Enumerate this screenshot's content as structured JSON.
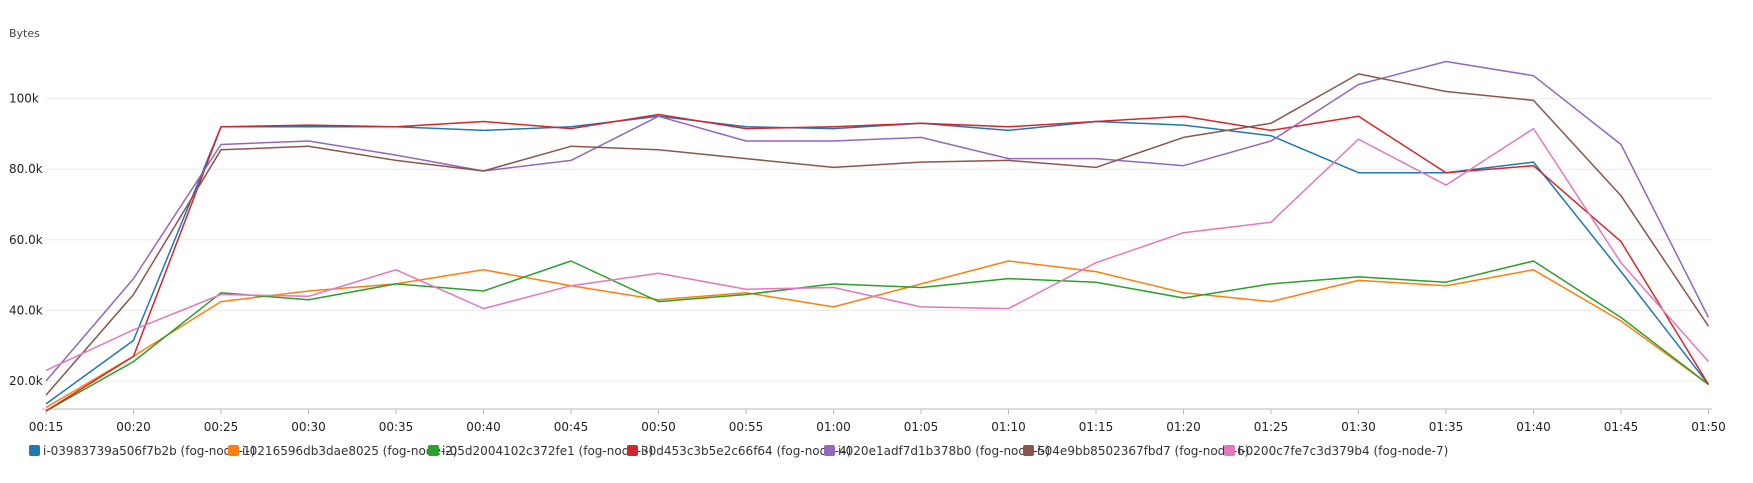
{
  "chart_data": {
    "type": "line",
    "ylabel": "Bytes",
    "xlabel": "",
    "ylim": [
      10000,
      115000
    ],
    "grid": true,
    "legend_position": "bottom",
    "x": [
      "00:15",
      "00:20",
      "00:25",
      "00:30",
      "00:35",
      "00:40",
      "00:45",
      "00:50",
      "00:55",
      "01:00",
      "01:05",
      "01:10",
      "01:15",
      "01:20",
      "01:25",
      "01:30",
      "01:35",
      "01:40",
      "01:45",
      "01:50"
    ],
    "y_ticks": [
      {
        "value": 20000,
        "label": "20.0k"
      },
      {
        "value": 40000,
        "label": "40.0k"
      },
      {
        "value": 60000,
        "label": "60.0k"
      },
      {
        "value": 80000,
        "label": "80.0k"
      },
      {
        "value": 100000,
        "label": "100k"
      }
    ],
    "series": [
      {
        "name": "i-03983739a506f7b2b (fog-node-1)",
        "color": "#1f77b4",
        "values": [
          13500,
          31500,
          92000,
          92000,
          92000,
          91000,
          92000,
          95000,
          92000,
          91500,
          93000,
          91000,
          93500,
          92500,
          89500,
          79000,
          79000,
          82000,
          51000,
          19000
        ]
      },
      {
        "name": "i-0216596db3dae8025 (fog-node-2)",
        "color": "#ff7f0e",
        "values": [
          12500,
          27000,
          42500,
          45500,
          47500,
          51500,
          47000,
          43000,
          45000,
          41000,
          47500,
          54000,
          51000,
          45000,
          42500,
          48500,
          47000,
          51500,
          37000,
          19000
        ]
      },
      {
        "name": "i-05d2004102c372fe1 (fog-node-3)",
        "color": "#2ca02c",
        "values": [
          11500,
          25500,
          45000,
          43000,
          47500,
          45500,
          54000,
          42500,
          44500,
          47500,
          46500,
          49000,
          48000,
          43500,
          47500,
          49500,
          48000,
          54000,
          38000,
          19000
        ]
      },
      {
        "name": "i-0d453c3b5e2c66f64 (fog-node-4)",
        "color": "#d62728",
        "values": [
          11500,
          27000,
          92000,
          92500,
          92000,
          93500,
          91500,
          95500,
          91500,
          92000,
          93000,
          92000,
          93500,
          95000,
          91000,
          95000,
          79000,
          81000,
          59500,
          19000
        ]
      },
      {
        "name": "i-020e1adf7d1b378b0 (fog-node-5)",
        "color": "#9467bd",
        "values": [
          20000,
          49000,
          87000,
          88000,
          84000,
          79500,
          82500,
          95000,
          88000,
          88000,
          89000,
          83000,
          83000,
          81000,
          88000,
          104000,
          110500,
          106500,
          87000,
          38000
        ]
      },
      {
        "name": "i-04e9bb8502367fbd7 (fog-node-6)",
        "color": "#8c564b",
        "values": [
          16000,
          44500,
          85500,
          86500,
          82500,
          79500,
          86500,
          85500,
          83000,
          80500,
          82000,
          82500,
          80500,
          89000,
          93000,
          107000,
          102000,
          99500,
          72500,
          35500
        ]
      },
      {
        "name": "i-0200c7fe7c3d379b4 (fog-node-7)",
        "color": "#e377c2",
        "values": [
          23000,
          34500,
          44500,
          44000,
          51500,
          40500,
          47000,
          50500,
          46000,
          46500,
          41000,
          40500,
          53500,
          62000,
          65000,
          88500,
          75500,
          91500,
          53500,
          25500
        ]
      }
    ]
  }
}
